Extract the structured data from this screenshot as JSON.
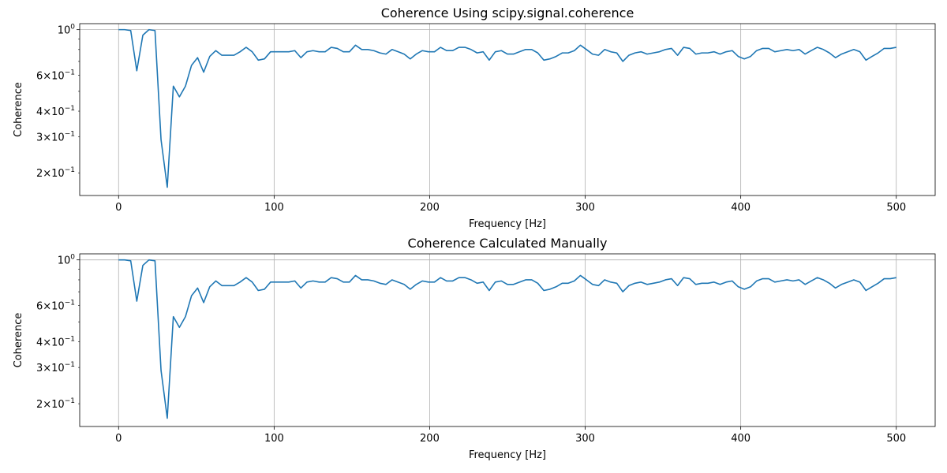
{
  "figure": {
    "background": "#ffffff"
  },
  "style": {
    "line_color": "#1f77b4",
    "grid_color": "#b0b0b0",
    "axes_color": "#000000"
  },
  "chart_data": [
    {
      "type": "line",
      "title": "Coherence Using scipy.signal.coherence",
      "xlabel": "Frequency [Hz]",
      "ylabel": "Coherence",
      "xlim": [
        -25,
        525
      ],
      "ylim": [
        0.155,
        1.07
      ],
      "yscale": "log",
      "grid": "x-major and y at 10^0",
      "xticks": [
        0,
        100,
        200,
        300,
        400,
        500
      ],
      "yticks": [
        {
          "value": 1.0,
          "base": "10",
          "exp": "0",
          "coef": ""
        },
        {
          "value": 0.6,
          "base": "10",
          "exp": "−1",
          "coef": "6"
        },
        {
          "value": 0.4,
          "base": "10",
          "exp": "−1",
          "coef": "4"
        },
        {
          "value": 0.3,
          "base": "10",
          "exp": "−1",
          "coef": "3"
        },
        {
          "value": 0.2,
          "base": "10",
          "exp": "−1",
          "coef": "2"
        }
      ],
      "series": [
        {
          "x": [
            0,
            3.9,
            7.8,
            11.7,
            15.6,
            19.5,
            23.4,
            27.3,
            31.3,
            35.2,
            39.1,
            43,
            46.9,
            50.8,
            54.7,
            58.6,
            62.5,
            66.4,
            70.3,
            74.2,
            78.1,
            82,
            85.9,
            89.8,
            93.8,
            97.7,
            101.6,
            105.5,
            109.4,
            113.3,
            117.2,
            121.1,
            125,
            128.9,
            132.8,
            136.7,
            140.6,
            144.5,
            148.4,
            152.3,
            156.3,
            160.2,
            164.1,
            168,
            171.9,
            175.8,
            179.7,
            183.6,
            187.5,
            191.4,
            195.3,
            199.2,
            203.1,
            207,
            210.9,
            214.8,
            218.8,
            222.7,
            226.6,
            230.5,
            234.4,
            238.3,
            242.2,
            246.1,
            250,
            253.9,
            257.8,
            261.7,
            265.6,
            269.5,
            273.4,
            277.3,
            281.3,
            285.2,
            289.1,
            293,
            296.9,
            300.8,
            304.7,
            308.6,
            312.5,
            316.4,
            320.3,
            324.2,
            328.1,
            332,
            335.9,
            339.8,
            343.8,
            347.7,
            351.6,
            355.5,
            359.4,
            363.3,
            367.2,
            371.1,
            375,
            378.9,
            382.8,
            386.7,
            390.6,
            394.5,
            398.4,
            402.3,
            406.3,
            410.2,
            414.1,
            418,
            421.9,
            425.8,
            429.7,
            433.6,
            437.5,
            441.4,
            445.3,
            449.2,
            453.1,
            457,
            460.9,
            464.8,
            468.8,
            472.7,
            476.6,
            480.5,
            484.4,
            488.3,
            492.2,
            496.1,
            500
          ],
          "y": [
            1.0,
            1.0,
            0.99,
            0.63,
            0.94,
            1.0,
            0.99,
            0.29,
            0.17,
            0.53,
            0.47,
            0.53,
            0.67,
            0.73,
            0.62,
            0.74,
            0.79,
            0.75,
            0.75,
            0.75,
            0.78,
            0.82,
            0.78,
            0.71,
            0.72,
            0.78,
            0.78,
            0.78,
            0.78,
            0.79,
            0.73,
            0.78,
            0.79,
            0.78,
            0.78,
            0.82,
            0.81,
            0.78,
            0.78,
            0.84,
            0.8,
            0.8,
            0.79,
            0.77,
            0.76,
            0.8,
            0.78,
            0.76,
            0.72,
            0.76,
            0.79,
            0.78,
            0.78,
            0.82,
            0.79,
            0.79,
            0.82,
            0.82,
            0.8,
            0.77,
            0.78,
            0.71,
            0.78,
            0.79,
            0.76,
            0.76,
            0.78,
            0.8,
            0.8,
            0.77,
            0.71,
            0.72,
            0.74,
            0.77,
            0.77,
            0.79,
            0.84,
            0.8,
            0.76,
            0.75,
            0.8,
            0.78,
            0.77,
            0.7,
            0.75,
            0.77,
            0.78,
            0.76,
            0.77,
            0.78,
            0.8,
            0.81,
            0.75,
            0.82,
            0.81,
            0.76,
            0.77,
            0.77,
            0.78,
            0.76,
            0.78,
            0.79,
            0.74,
            0.72,
            0.74,
            0.79,
            0.81,
            0.81,
            0.78,
            0.79,
            0.8,
            0.79,
            0.8,
            0.76,
            0.79,
            0.82,
            0.8,
            0.77,
            0.73,
            0.76,
            0.78,
            0.8,
            0.78,
            0.71,
            0.74,
            0.77,
            0.81,
            0.81,
            0.82
          ]
        }
      ]
    },
    {
      "type": "line",
      "title": "Coherence Calculated Manually",
      "xlabel": "Frequency [Hz]",
      "ylabel": "Coherence",
      "xlim": [
        -25,
        525
      ],
      "ylim": [
        0.155,
        1.07
      ],
      "yscale": "log",
      "grid": "x-major and y at 10^0",
      "xticks": [
        0,
        100,
        200,
        300,
        400,
        500
      ],
      "yticks": [
        {
          "value": 1.0,
          "base": "10",
          "exp": "0",
          "coef": ""
        },
        {
          "value": 0.6,
          "base": "10",
          "exp": "−1",
          "coef": "6"
        },
        {
          "value": 0.4,
          "base": "10",
          "exp": "−1",
          "coef": "4"
        },
        {
          "value": 0.3,
          "base": "10",
          "exp": "−1",
          "coef": "3"
        },
        {
          "value": 0.2,
          "base": "10",
          "exp": "−1",
          "coef": "2"
        }
      ],
      "series": [
        {
          "x": [
            0,
            3.9,
            7.8,
            11.7,
            15.6,
            19.5,
            23.4,
            27.3,
            31.3,
            35.2,
            39.1,
            43,
            46.9,
            50.8,
            54.7,
            58.6,
            62.5,
            66.4,
            70.3,
            74.2,
            78.1,
            82,
            85.9,
            89.8,
            93.8,
            97.7,
            101.6,
            105.5,
            109.4,
            113.3,
            117.2,
            121.1,
            125,
            128.9,
            132.8,
            136.7,
            140.6,
            144.5,
            148.4,
            152.3,
            156.3,
            160.2,
            164.1,
            168,
            171.9,
            175.8,
            179.7,
            183.6,
            187.5,
            191.4,
            195.3,
            199.2,
            203.1,
            207,
            210.9,
            214.8,
            218.8,
            222.7,
            226.6,
            230.5,
            234.4,
            238.3,
            242.2,
            246.1,
            250,
            253.9,
            257.8,
            261.7,
            265.6,
            269.5,
            273.4,
            277.3,
            281.3,
            285.2,
            289.1,
            293,
            296.9,
            300.8,
            304.7,
            308.6,
            312.5,
            316.4,
            320.3,
            324.2,
            328.1,
            332,
            335.9,
            339.8,
            343.8,
            347.7,
            351.6,
            355.5,
            359.4,
            363.3,
            367.2,
            371.1,
            375,
            378.9,
            382.8,
            386.7,
            390.6,
            394.5,
            398.4,
            402.3,
            406.3,
            410.2,
            414.1,
            418,
            421.9,
            425.8,
            429.7,
            433.6,
            437.5,
            441.4,
            445.3,
            449.2,
            453.1,
            457,
            460.9,
            464.8,
            468.8,
            472.7,
            476.6,
            480.5,
            484.4,
            488.3,
            492.2,
            496.1,
            500
          ],
          "y": [
            1.0,
            1.0,
            0.99,
            0.63,
            0.94,
            1.0,
            0.99,
            0.29,
            0.17,
            0.53,
            0.47,
            0.53,
            0.67,
            0.73,
            0.62,
            0.74,
            0.79,
            0.75,
            0.75,
            0.75,
            0.78,
            0.82,
            0.78,
            0.71,
            0.72,
            0.78,
            0.78,
            0.78,
            0.78,
            0.79,
            0.73,
            0.78,
            0.79,
            0.78,
            0.78,
            0.82,
            0.81,
            0.78,
            0.78,
            0.84,
            0.8,
            0.8,
            0.79,
            0.77,
            0.76,
            0.8,
            0.78,
            0.76,
            0.72,
            0.76,
            0.79,
            0.78,
            0.78,
            0.82,
            0.79,
            0.79,
            0.82,
            0.82,
            0.8,
            0.77,
            0.78,
            0.71,
            0.78,
            0.79,
            0.76,
            0.76,
            0.78,
            0.8,
            0.8,
            0.77,
            0.71,
            0.72,
            0.74,
            0.77,
            0.77,
            0.79,
            0.84,
            0.8,
            0.76,
            0.75,
            0.8,
            0.78,
            0.77,
            0.7,
            0.75,
            0.77,
            0.78,
            0.76,
            0.77,
            0.78,
            0.8,
            0.81,
            0.75,
            0.82,
            0.81,
            0.76,
            0.77,
            0.77,
            0.78,
            0.76,
            0.78,
            0.79,
            0.74,
            0.72,
            0.74,
            0.79,
            0.81,
            0.81,
            0.78,
            0.79,
            0.8,
            0.79,
            0.8,
            0.76,
            0.79,
            0.82,
            0.8,
            0.77,
            0.73,
            0.76,
            0.78,
            0.8,
            0.78,
            0.71,
            0.74,
            0.77,
            0.81,
            0.81,
            0.82
          ]
        }
      ]
    }
  ]
}
